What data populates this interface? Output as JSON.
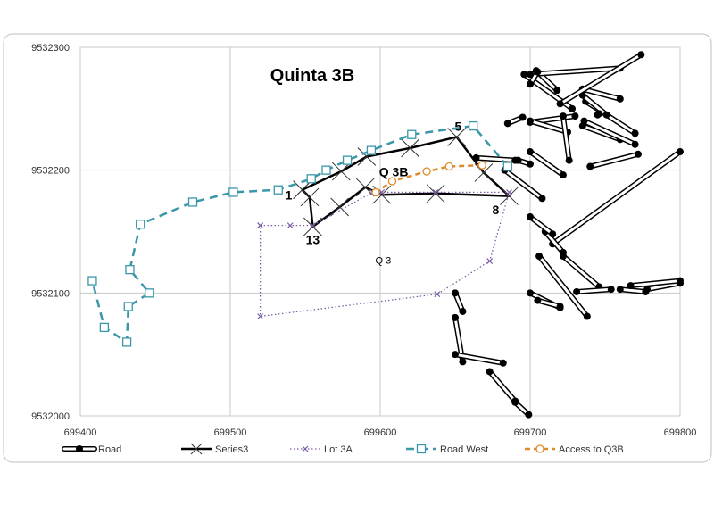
{
  "chart_data": {
    "type": "scatter",
    "title": "Quinta 3B",
    "xlabel": "",
    "ylabel": "",
    "xlim": [
      699400,
      699800
    ],
    "ylim": [
      9532000,
      9532300
    ],
    "x_ticks": [
      "699400",
      "699500",
      "699600",
      "699700",
      "699800"
    ],
    "y_ticks": [
      "9532000",
      "9532100",
      "9532200",
      "9532300"
    ],
    "grid": true,
    "legend_position": "bottom",
    "series": [
      {
        "name": "Road",
        "color": "#000000",
        "style": "double-line-dot",
        "segments": [
          [
            [
              699685,
              9532238
            ],
            [
              699695,
              9532243
            ]
          ],
          [
            [
              699700,
              9532239
            ],
            [
              699730,
              9532244
            ]
          ],
          [
            [
              699700,
              9532240
            ],
            [
              699725,
              9532231
            ]
          ],
          [
            [
              699704,
              9532281
            ],
            [
              699718,
              9532265
            ]
          ],
          [
            [
              699722,
              9532244
            ],
            [
              699726,
              9532208
            ]
          ],
          [
            [
              699735,
              9532266
            ],
            [
              699760,
              9532258
            ]
          ],
          [
            [
              699737,
              9532256
            ],
            [
              699770,
              9532230
            ]
          ],
          [
            [
              699735,
              9532261
            ],
            [
              699751,
              9532245
            ]
          ],
          [
            [
              699735,
              9532236
            ],
            [
              699760,
              9532225
            ]
          ],
          [
            [
              699736,
              9532240
            ],
            [
              699770,
              9532221
            ]
          ],
          [
            [
              699696,
              9532278
            ],
            [
              699728,
              9532250
            ]
          ],
          [
            [
              699700,
              9532278
            ],
            [
              699760,
              9532283
            ]
          ],
          [
            [
              699720,
              9532254
            ],
            [
              699774,
              9532294
            ]
          ],
          [
            [
              699740,
              9532203
            ],
            [
              699772,
              9532213
            ]
          ],
          [
            [
              699715,
              9532140
            ],
            [
              699800,
              9532215
            ]
          ],
          [
            [
              699700,
              9532215
            ],
            [
              699722,
              9532196
            ]
          ],
          [
            [
              699710,
              9532150
            ],
            [
              699722,
              9532133
            ]
          ],
          [
            [
              699722,
              9532130
            ],
            [
              699746,
              9532105
            ]
          ],
          [
            [
              699706,
              9532130
            ],
            [
              699738,
              9532081
            ]
          ],
          [
            [
              699700,
              9532100
            ],
            [
              699720,
              9532088
            ]
          ],
          [
            [
              699705,
              9532094
            ],
            [
              699720,
              9532089
            ]
          ],
          [
            [
              699731,
              9532101
            ],
            [
              699754,
              9532103
            ]
          ],
          [
            [
              699778,
              9532103
            ],
            [
              699800,
              9532108
            ]
          ],
          [
            [
              699650,
              9532100
            ],
            [
              699655,
              9532085
            ]
          ],
          [
            [
              699650,
              9532080
            ],
            [
              699655,
              9532044
            ]
          ],
          [
            [
              699650,
              9532050
            ],
            [
              699682,
              9532043
            ]
          ],
          [
            [
              699673,
              9532036
            ],
            [
              699690,
              9532012
            ]
          ],
          [
            [
              699690,
              9532011
            ],
            [
              699699,
              9532001
            ]
          ],
          [
            [
              699700,
              9532270
            ],
            [
              699705,
              9532280
            ]
          ],
          [
            [
              699760,
              9532103
            ],
            [
              699777,
              9532101
            ]
          ],
          [
            [
              699767,
              9532106
            ],
            [
              699800,
              9532110
            ]
          ],
          [
            [
              699745,
              9532245
            ],
            [
              699746,
              9532246
            ]
          ],
          [
            [
              699664,
              9532210
            ],
            [
              699690,
              9532208
            ]
          ],
          [
            [
              699692,
              9532208
            ],
            [
              699700,
              9532205
            ]
          ],
          [
            [
              699683,
              9532200
            ],
            [
              699708,
              9532177
            ]
          ],
          [
            [
              699700,
              9532162
            ],
            [
              699715,
              9532148
            ]
          ]
        ]
      },
      {
        "name": "Series3",
        "color": "#000000",
        "points": [
          [
            699548,
            9532184
          ],
          [
            699574,
            9532199
          ],
          [
            699591,
            9532211
          ],
          [
            699620,
            9532218
          ],
          [
            699651,
            9532227
          ],
          [
            699669,
            9532198
          ],
          [
            699686,
            9532179
          ],
          [
            699637,
            9532181
          ],
          [
            699601,
            9532180
          ],
          [
            699590,
            9532186
          ],
          [
            699573,
            9532170
          ],
          [
            699555,
            9532154
          ],
          [
            699553,
            9532178
          ],
          [
            699548,
            9532184
          ]
        ]
      },
      {
        "name": "Lot 3A",
        "color": "#7b5ea7",
        "points": [
          [
            699520,
            9532155
          ],
          [
            699540,
            9532155
          ],
          [
            699555,
            9532155
          ],
          [
            699595,
            9532182
          ],
          [
            699601,
            9532182
          ],
          [
            699637,
            9532182
          ],
          [
            699686,
            9532182
          ],
          [
            699673,
            9532126
          ],
          [
            699638,
            9532099
          ],
          [
            699520,
            9532081
          ],
          [
            699520,
            9532155
          ]
        ]
      },
      {
        "name": "Road West",
        "color": "#3a97a9",
        "points": [
          [
            699685,
            9532203
          ],
          [
            699662,
            9532236
          ],
          [
            699621,
            9532229
          ],
          [
            699594,
            9532216
          ],
          [
            699578,
            9532208
          ],
          [
            699564,
            9532200
          ],
          [
            699554,
            9532193
          ],
          [
            699532,
            9532184
          ],
          [
            699502,
            9532182
          ],
          [
            699475,
            9532174
          ],
          [
            699440,
            9532156
          ],
          [
            699433,
            9532119
          ],
          [
            699446,
            9532100
          ],
          [
            699432,
            9532089
          ],
          [
            699431,
            9532060
          ],
          [
            699416,
            9532072
          ],
          [
            699408,
            9532110
          ]
        ]
      },
      {
        "name": "Access to Q3B",
        "color": "#e08b2a",
        "points": [
          [
            699668,
            9532204
          ],
          [
            699646,
            9532203
          ],
          [
            699631,
            9532199
          ],
          [
            699608,
            9532191
          ],
          [
            699597,
            9532182
          ]
        ]
      }
    ],
    "annotations": [
      {
        "text": "1",
        "x": 699539,
        "y": 9532176
      },
      {
        "text": "5",
        "x": 699652,
        "y": 9532232
      },
      {
        "text": "8",
        "x": 699677,
        "y": 9532164
      },
      {
        "text": "13",
        "x": 699555,
        "y": 9532140
      },
      {
        "text": "Q 3B",
        "x": 699609,
        "y": 9532195
      },
      {
        "text": "Q 3",
        "x": 699602,
        "y": 9532124
      }
    ]
  }
}
